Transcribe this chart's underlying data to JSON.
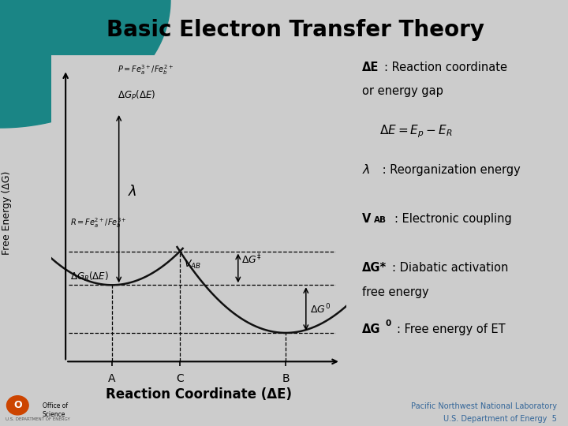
{
  "title": "Basic Electron Transfer Theory",
  "title_fontsize": 20,
  "title_fontweight": "bold",
  "bg_color": "#cccccc",
  "plot_bg_color": "#cccccc",
  "curve_color": "#111111",
  "xlabel": "Reaction Coordinate (ΔE)",
  "ylabel": "Free Energy (ΔG)",
  "xlabel_fontsize": 12,
  "ylabel_fontsize": 9,
  "xA": -1.5,
  "xB": 1.5,
  "lambda_val": 1.8,
  "dG0_val": -0.5,
  "teal_color1": "#1a8585",
  "teal_color2": "#006666",
  "footer_right_line1": "Pacific Northwest National Laboratory",
  "footer_right_line2": "U.S. Department of Energy  5",
  "footer_fontsize": 7
}
